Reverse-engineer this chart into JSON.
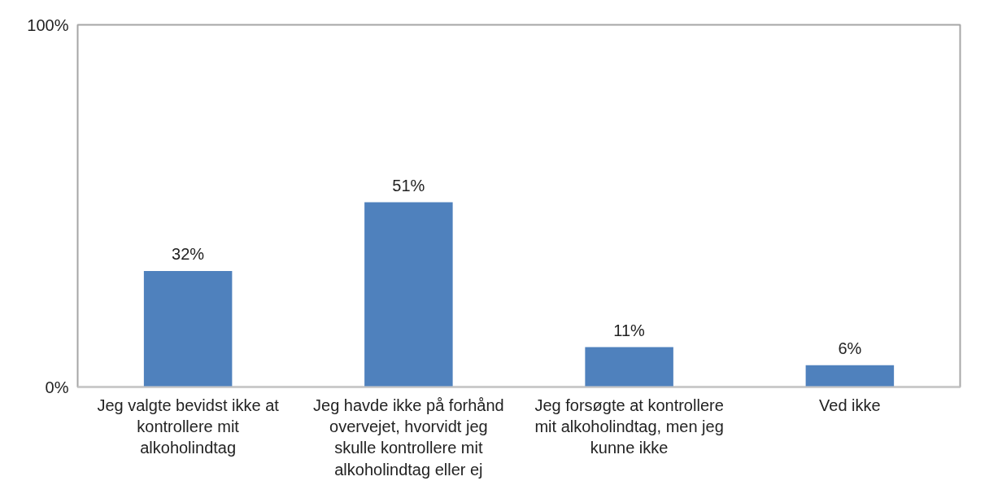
{
  "chart_data": {
    "type": "bar",
    "categories": [
      "Jeg valgte bevidst ikke at kontrollere mit alkoholindtag",
      "Jeg havde ikke på forhånd overvejet, hvorvidt jeg skulle kontrollere mit alkoholindtag eller ej",
      "Jeg forsøgte at kontrollere mit alkoholindtag, men jeg kunne ikke",
      "Ved ikke"
    ],
    "values": [
      32,
      51,
      11,
      6
    ],
    "color": "#4f81bd",
    "value_labels": [
      "32%",
      "51%",
      "11%",
      "6%"
    ],
    "ylim": [
      0,
      100
    ],
    "yticks": [
      {
        "value": 0,
        "label": "0%"
      },
      {
        "value": 100,
        "label": "100%"
      }
    ],
    "grid": false
  }
}
